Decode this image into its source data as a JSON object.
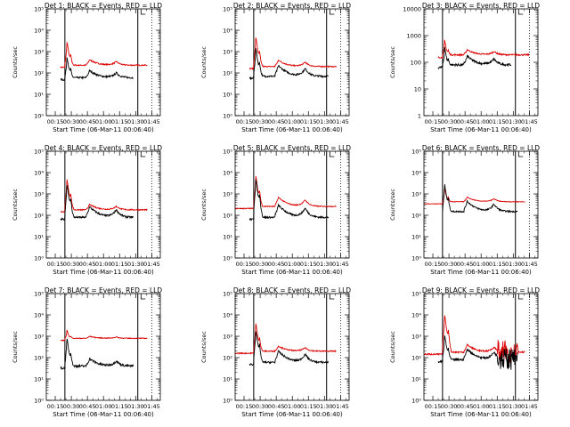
{
  "chart_data": {
    "common": {
      "type": "line",
      "xlabel": "Start Time (06-Mar-11 00:06:40)",
      "ylabel": "Counts/sec",
      "x_ticks": [
        "00:15",
        "00:30",
        "00:45",
        "01:00",
        "01:15",
        "01:30",
        "01:45"
      ],
      "x_tick_minutes": [
        15,
        30,
        45,
        60,
        75,
        90,
        105
      ],
      "xlim_minutes": [
        6.67,
        113
      ],
      "y_scale": "log",
      "markers": {
        "solid_minutes": [
          24,
          92
        ],
        "dotted_minutes": [
          105
        ],
        "L_minutes": 95
      },
      "series_colors": {
        "events": "#000000",
        "lld": "#dd0000"
      }
    },
    "panels": [
      {
        "title": "Det 1: BLACK = Events, RED = LLD",
        "ylim": [
          1,
          100000
        ],
        "y_tick_labels": [
          "10⁰",
          "10¹",
          "10²",
          "10³",
          "10⁴",
          "10⁵"
        ],
        "y_ticks": [
          1,
          10,
          100,
          1000,
          10000,
          100000
        ],
        "series": {
          "events": {
            "base": 60,
            "peak": 600,
            "bump": 130,
            "start": 20,
            "end": 88,
            "noise": 0.1
          },
          "lld": {
            "base": 230,
            "peak": 3000,
            "bump": 420,
            "start": 20,
            "end": 101,
            "noise": 0.06
          }
        }
      },
      {
        "title": "Det 2: BLACK = Events, RED = LLD",
        "ylim": [
          1,
          100000
        ],
        "y_tick_labels": [
          "10⁰",
          "10¹",
          "10²",
          "10³",
          "10⁴",
          "10⁵"
        ],
        "y_ticks": [
          1,
          10,
          100,
          1000,
          10000,
          100000
        ],
        "series": {
          "events": {
            "base": 70,
            "peak": 1500,
            "bump": 220,
            "start": 20,
            "end": 94,
            "noise": 0.1
          },
          "lld": {
            "base": 200,
            "peak": 5000,
            "bump": 400,
            "start": 20,
            "end": 101,
            "noise": 0.06
          }
        }
      },
      {
        "title": "Det 3: BLACK = Events, RED = LLD",
        "ylim": [
          1,
          10000
        ],
        "y_tick_labels": [
          "1",
          "10",
          "100",
          "1000",
          "10000"
        ],
        "y_ticks": [
          1,
          10,
          100,
          1000,
          10000
        ],
        "series": {
          "events": {
            "base": 80,
            "peak": 400,
            "bump": 170,
            "start": 20,
            "end": 88,
            "noise": 0.1
          },
          "lld": {
            "base": 190,
            "peak": 700,
            "bump": 300,
            "start": 20,
            "end": 105,
            "noise": 0.06
          }
        }
      },
      {
        "title": "Det 4: BLACK = Events, RED = LLD",
        "ylim": [
          1,
          100000
        ],
        "y_tick_labels": [
          "10⁰",
          "10¹",
          "10²",
          "10³",
          "10⁴",
          "10⁵"
        ],
        "y_ticks": [
          1,
          10,
          100,
          1000,
          10000,
          100000
        ],
        "series": {
          "events": {
            "base": 80,
            "peak": 3000,
            "bump": 250,
            "start": 20,
            "end": 88,
            "noise": 0.1
          },
          "lld": {
            "base": 180,
            "peak": 5000,
            "bump": 320,
            "start": 20,
            "end": 101,
            "noise": 0.06
          }
        }
      },
      {
        "title": "Det 5: BLACK = Events, RED = LLD",
        "ylim": [
          1,
          100000
        ],
        "y_tick_labels": [
          "10⁰",
          "10¹",
          "10²",
          "10³",
          "10⁴",
          "10⁵"
        ],
        "y_ticks": [
          1,
          10,
          100,
          1000,
          10000,
          100000
        ],
        "series": {
          "events": {
            "base": 80,
            "peak": 5000,
            "bump": 300,
            "start": 20,
            "end": 94,
            "noise": 0.1
          },
          "lld": {
            "base": 260,
            "peak": 7000,
            "bump": 700,
            "start": 6.8,
            "end": 101,
            "noise": 0.05
          }
        }
      },
      {
        "title": "Det 6: BLACK = Events, RED = LLD",
        "ylim": [
          1,
          100000
        ],
        "y_tick_labels": [
          "10⁰",
          "10¹",
          "10²",
          "10³",
          "10⁴",
          "10⁵"
        ],
        "y_ticks": [
          1,
          10,
          100,
          1000,
          10000,
          100000
        ],
        "series": {
          "events": {
            "base": 150,
            "peak": 3000,
            "bump": 450,
            "start": 24,
            "end": 94,
            "noise": 0.08
          },
          "lld": {
            "base": 430,
            "peak": 2000,
            "bump": 700,
            "start": 6.8,
            "end": 101,
            "noise": 0.03
          }
        }
      },
      {
        "title": "Det 7: BLACK = Events, RED = LLD",
        "ylim": [
          1,
          100000
        ],
        "y_tick_labels": [
          "10⁰",
          "10¹",
          "10²",
          "10³",
          "10⁴",
          "10⁵"
        ],
        "y_ticks": [
          1,
          10,
          100,
          1000,
          10000,
          100000
        ],
        "series": {
          "events": {
            "base": 40,
            "peak": 800,
            "bump": 90,
            "start": 20,
            "end": 88,
            "noise": 0.12
          },
          "lld": {
            "base": 800,
            "peak": 2000,
            "bump": 1000,
            "start": 20,
            "end": 101,
            "noise": 0.04
          }
        }
      },
      {
        "title": "Det 8: BLACK = Events, RED = LLD",
        "ylim": [
          1,
          100000
        ],
        "y_tick_labels": [
          "10⁰",
          "10¹",
          "10²",
          "10³",
          "10⁴",
          "10⁵"
        ],
        "y_ticks": [
          1,
          10,
          100,
          1000,
          10000,
          100000
        ],
        "series": {
          "events": {
            "base": 60,
            "peak": 2000,
            "bump": 200,
            "start": 20,
            "end": 94,
            "noise": 0.1
          },
          "lld": {
            "base": 200,
            "peak": 4000,
            "bump": 350,
            "start": 6.8,
            "end": 101,
            "noise": 0.06
          }
        }
      },
      {
        "title": "Det 9: BLACK = Events, RED = LLD",
        "ylim": [
          1,
          100000
        ],
        "y_tick_labels": [
          "10⁰",
          "10¹",
          "10²",
          "10³",
          "10⁴",
          "10⁵"
        ],
        "y_ticks": [
          1,
          10,
          100,
          1000,
          10000,
          100000
        ],
        "series": {
          "events": {
            "base": 80,
            "peak": 1200,
            "bump": 250,
            "start": 20,
            "end": 94,
            "noise": 0.1,
            "burst": true
          },
          "lld": {
            "base": 180,
            "peak": 10000,
            "bump": 400,
            "start": 6.8,
            "end": 101,
            "noise": 0.08,
            "burst": true
          }
        }
      }
    ]
  }
}
